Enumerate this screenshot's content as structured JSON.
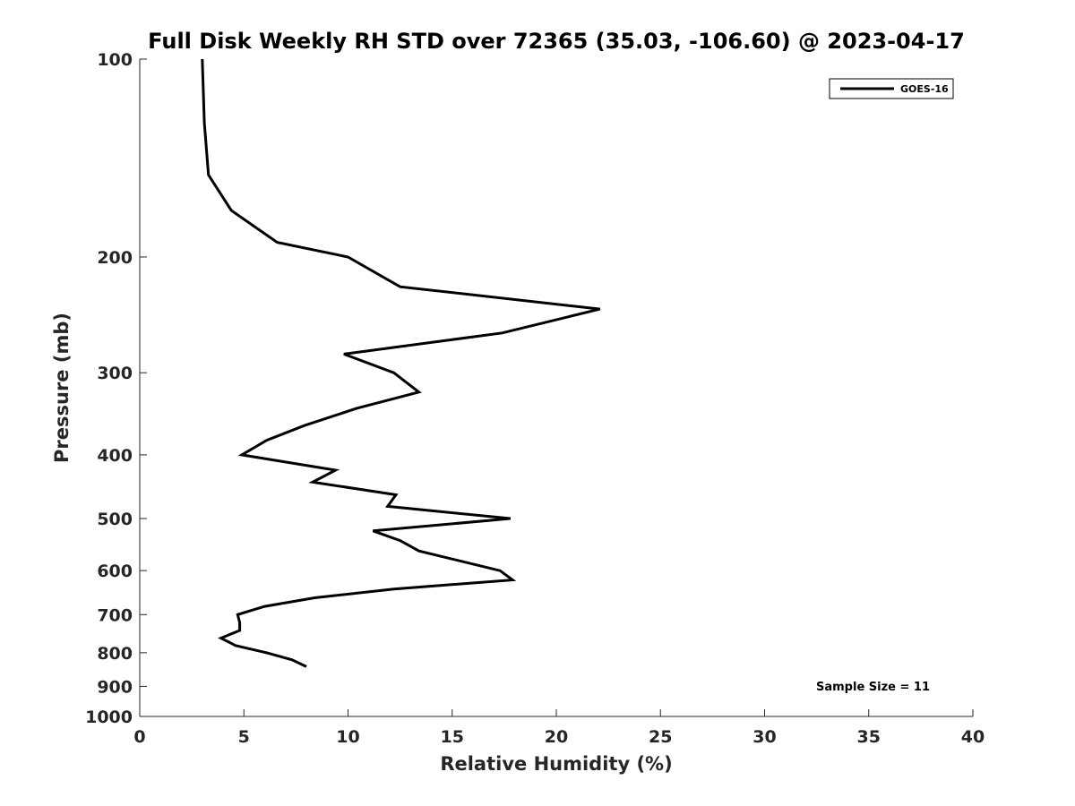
{
  "chart_data": {
    "type": "line",
    "title": "Full Disk Weekly RH STD over 72365 (35.03, -106.60) @ 2023-04-17",
    "xlabel": "Relative Humidity (%)",
    "ylabel": "Pressure (mb)",
    "xlim": [
      0,
      40
    ],
    "ylim": [
      1000,
      100
    ],
    "yscale": "log",
    "y_reversed": true,
    "x_ticks": [
      0,
      5,
      10,
      15,
      20,
      25,
      30,
      35,
      40
    ],
    "x_tick_labels": [
      "0",
      "5",
      "10",
      "15",
      "20",
      "25",
      "30",
      "35",
      "40"
    ],
    "y_ticks": [
      100,
      200,
      300,
      400,
      500,
      600,
      700,
      800,
      900,
      1000
    ],
    "y_tick_labels": [
      "100",
      "200",
      "300",
      "400",
      "500",
      "600",
      "700",
      "800",
      "900",
      "1000"
    ],
    "grid": false,
    "legend_position": "top-right",
    "annotation": "Sample Size = 11",
    "series": [
      {
        "name": "GOES-16",
        "color": "#000000",
        "points": [
          {
            "x": 3.0,
            "y": 100
          },
          {
            "x": 3.1,
            "y": 125
          },
          {
            "x": 3.3,
            "y": 150
          },
          {
            "x": 4.4,
            "y": 170
          },
          {
            "x": 6.6,
            "y": 190
          },
          {
            "x": 10.0,
            "y": 200
          },
          {
            "x": 12.5,
            "y": 222
          },
          {
            "x": 22.1,
            "y": 240
          },
          {
            "x": 17.4,
            "y": 261
          },
          {
            "x": 9.8,
            "y": 281
          },
          {
            "x": 12.2,
            "y": 300
          },
          {
            "x": 13.4,
            "y": 321
          },
          {
            "x": 10.4,
            "y": 340
          },
          {
            "x": 7.9,
            "y": 361
          },
          {
            "x": 6.1,
            "y": 380
          },
          {
            "x": 4.9,
            "y": 400
          },
          {
            "x": 9.4,
            "y": 422
          },
          {
            "x": 8.3,
            "y": 440
          },
          {
            "x": 12.3,
            "y": 460
          },
          {
            "x": 11.9,
            "y": 479
          },
          {
            "x": 17.8,
            "y": 500
          },
          {
            "x": 11.2,
            "y": 522
          },
          {
            "x": 12.5,
            "y": 540
          },
          {
            "x": 13.4,
            "y": 560
          },
          {
            "x": 17.3,
            "y": 600
          },
          {
            "x": 17.9,
            "y": 620
          },
          {
            "x": 12.2,
            "y": 640
          },
          {
            "x": 8.4,
            "y": 660
          },
          {
            "x": 6.0,
            "y": 680
          },
          {
            "x": 4.7,
            "y": 700
          },
          {
            "x": 4.8,
            "y": 720
          },
          {
            "x": 4.8,
            "y": 740
          },
          {
            "x": 3.9,
            "y": 760
          },
          {
            "x": 4.6,
            "y": 780
          },
          {
            "x": 6.1,
            "y": 800
          },
          {
            "x": 7.3,
            "y": 820
          },
          {
            "x": 8.0,
            "y": 840
          }
        ]
      }
    ]
  }
}
